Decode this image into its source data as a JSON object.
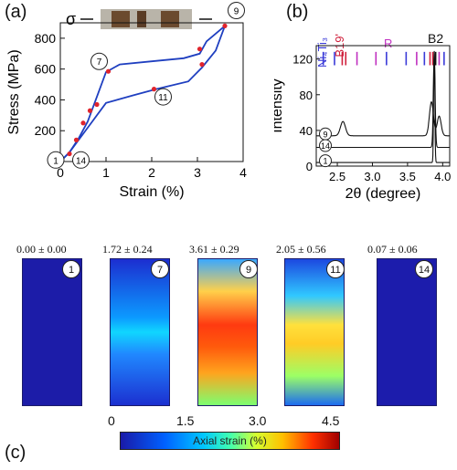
{
  "panel_a": {
    "label": "(a)",
    "sigma": "σ",
    "chart_data": {
      "type": "line",
      "xlabel": "Strain (%)",
      "ylabel": "Stress (MPa)",
      "xlim": [
        0,
        4
      ],
      "ylim": [
        0,
        900
      ],
      "xticks": [
        "0",
        "1",
        "2",
        "3",
        "4"
      ],
      "yticks": [
        "0",
        "200",
        "400",
        "600",
        "800"
      ],
      "series": [
        {
          "role": "loading",
          "color": "#1f3fc0",
          "points": [
            [
              0,
              0
            ],
            [
              0.2,
              60
            ],
            [
              0.4,
              150
            ],
            [
              0.6,
              260
            ],
            [
              0.8,
              420
            ],
            [
              1.0,
              580
            ],
            [
              1.3,
              630
            ],
            [
              2.0,
              650
            ],
            [
              2.7,
              670
            ],
            [
              3.05,
              700
            ],
            [
              3.2,
              780
            ],
            [
              3.6,
              880
            ]
          ]
        },
        {
          "role": "unloading",
          "color": "#1f3fc0",
          "points": [
            [
              3.6,
              880
            ],
            [
              3.4,
              720
            ],
            [
              3.1,
              610
            ],
            [
              2.8,
              520
            ],
            [
              2.1,
              470
            ],
            [
              1.6,
              430
            ],
            [
              1.0,
              380
            ],
            [
              0.7,
              260
            ],
            [
              0.4,
              140
            ],
            [
              0.2,
              60
            ],
            [
              0,
              0
            ]
          ]
        }
      ],
      "markers": [
        [
          0.2,
          50
        ],
        [
          0.35,
          140
        ],
        [
          0.5,
          250
        ],
        [
          0.65,
          330
        ],
        [
          0.8,
          370
        ],
        [
          1.05,
          585
        ],
        [
          2.05,
          470
        ],
        [
          3.05,
          730
        ],
        [
          3.1,
          630
        ],
        [
          3.6,
          880
        ]
      ],
      "annotations": [
        {
          "text": "1",
          "x": -0.1,
          "y": 10
        },
        {
          "text": "14",
          "x": 0.45,
          "y": 10
        },
        {
          "text": "7",
          "x": 0.85,
          "y": 650
        },
        {
          "text": "11",
          "x": 2.25,
          "y": 420
        },
        {
          "text": "9",
          "x": 3.85,
          "y": 980
        }
      ]
    }
  },
  "panel_b": {
    "label": "(b)",
    "chart_data": {
      "type": "line",
      "xlabel": "2θ (degree)",
      "ylabel": "Intensity",
      "xlim": [
        2.2,
        4.1
      ],
      "ylim": [
        0,
        135
      ],
      "xticks": [
        "2.5",
        "3.0",
        "3.5",
        "4.0"
      ],
      "yticks": [
        "0",
        "40",
        "80",
        "120"
      ],
      "phase_labels": [
        {
          "text": "Ni₄Ti₃",
          "color": "#3a3ad8"
        },
        {
          "text": "B19'",
          "color": "#d0203c"
        },
        {
          "text": "R",
          "color": "#c030c0"
        },
        {
          "text": "B2",
          "color": "#111111"
        }
      ],
      "curve_labels": [
        "9",
        "14",
        "1"
      ]
    }
  },
  "panel_c": {
    "label": "(c)",
    "maps": [
      {
        "strain": "0.00 ± 0.00",
        "state": "1"
      },
      {
        "strain": "1.72 ± 0.24",
        "state": "7"
      },
      {
        "strain": "3.61 ± 0.29",
        "state": "9"
      },
      {
        "strain": "2.05 ± 0.56",
        "state": "11"
      },
      {
        "strain": "0.07 ± 0.06",
        "state": "14"
      }
    ],
    "colorbar": {
      "ticks": [
        "0",
        "1.5",
        "3.0",
        "4.5"
      ],
      "title": "Axial strain (%)",
      "colors": [
        "#1a1aa8",
        "#0060ff",
        "#00c8ff",
        "#40ffb0",
        "#d6ff30",
        "#ffc000",
        "#ff3000",
        "#a00000"
      ]
    }
  }
}
